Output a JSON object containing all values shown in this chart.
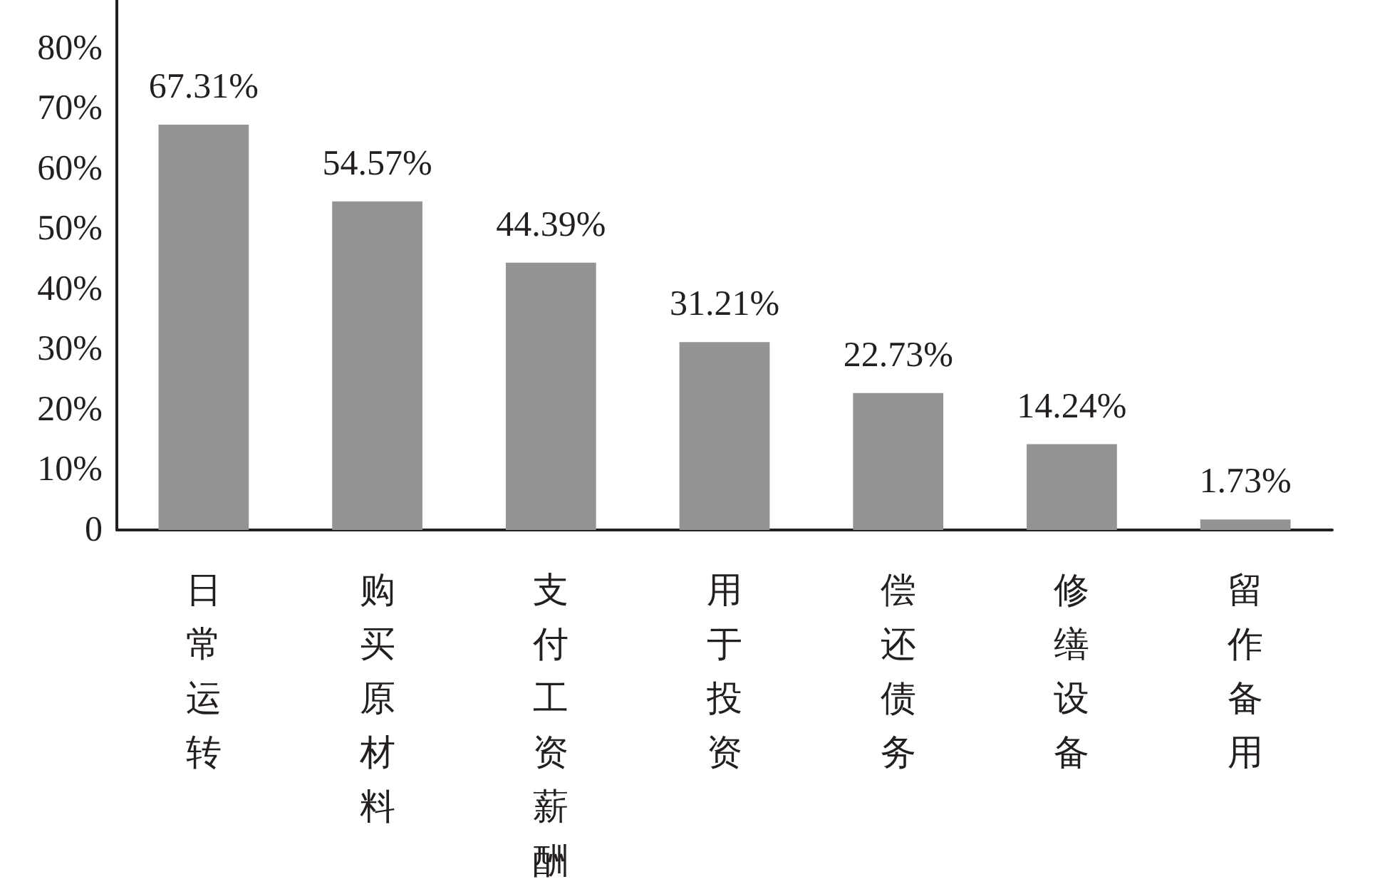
{
  "chart_data": {
    "type": "bar",
    "categories": [
      "日常运转",
      "购买原材料",
      "支付工资薪酬",
      "用于投资",
      "偿还债务",
      "修缮设备",
      "留作备用"
    ],
    "values": [
      67.31,
      54.57,
      44.39,
      31.21,
      22.73,
      14.24,
      1.73
    ],
    "value_labels": [
      "67.31%",
      "54.57%",
      "44.39%",
      "31.21%",
      "22.73%",
      "14.24%",
      "1.73%"
    ],
    "color": "#929395",
    "ylim": [
      0,
      88
    ],
    "yticks": [
      {
        "value": 0,
        "label": "0"
      },
      {
        "value": 10,
        "label": "10%"
      },
      {
        "value": 20,
        "label": "20%"
      },
      {
        "value": 30,
        "label": "30%"
      },
      {
        "value": 40,
        "label": "40%"
      },
      {
        "value": 50,
        "label": "50%"
      },
      {
        "value": 60,
        "label": "60%"
      },
      {
        "value": 70,
        "label": "70%"
      },
      {
        "value": 80,
        "label": "80%"
      }
    ],
    "grid": false
  }
}
